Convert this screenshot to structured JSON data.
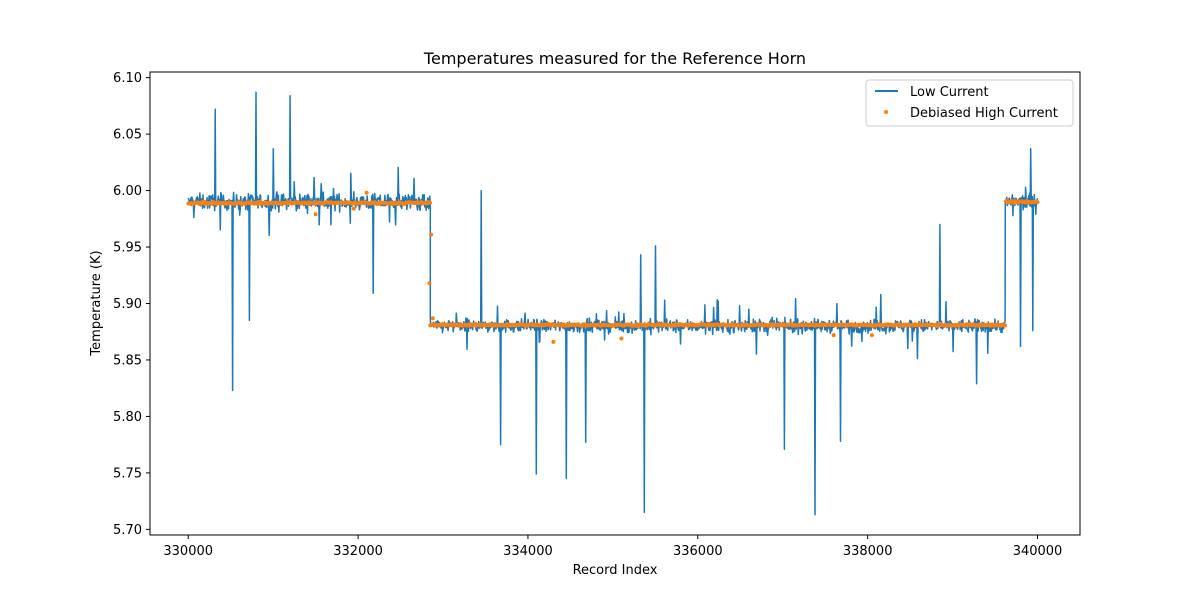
{
  "chart_data": {
    "type": "line",
    "title": "Temperatures measured for the Reference Horn",
    "xlabel": "Record Index",
    "ylabel": "Temperature (K)",
    "xlim": [
      329550,
      340500
    ],
    "ylim": [
      5.695,
      6.105
    ],
    "xticks": [
      330000,
      332000,
      334000,
      336000,
      338000,
      340000
    ],
    "xtick_labels": [
      "330000",
      "332000",
      "334000",
      "336000",
      "338000",
      "340000"
    ],
    "yticks": [
      5.7,
      5.75,
      5.8,
      5.85,
      5.9,
      5.95,
      6.0,
      6.05,
      6.1
    ],
    "ytick_labels": [
      "5.70",
      "5.75",
      "5.80",
      "5.85",
      "5.90",
      "5.95",
      "6.00",
      "6.05",
      "6.10"
    ],
    "grid": false,
    "legend_position": "top-right",
    "series": [
      {
        "name": "Low Current",
        "style": "line",
        "color": "#1f77b4",
        "segments": [
          {
            "x_start": 330000,
            "x_end": 332850,
            "base": 5.99,
            "noise": 0.012
          },
          {
            "x_start": 332850,
            "x_end": 339620,
            "base": 5.88,
            "noise": 0.01
          },
          {
            "x_start": 339620,
            "x_end": 340000,
            "base": 5.99,
            "noise": 0.012
          }
        ],
        "spikes": [
          {
            "x": 330320,
            "y": 6.072
          },
          {
            "x": 330520,
            "y": 5.823
          },
          {
            "x": 330720,
            "y": 5.885
          },
          {
            "x": 330800,
            "y": 6.087
          },
          {
            "x": 331000,
            "y": 6.037
          },
          {
            "x": 331200,
            "y": 6.084
          },
          {
            "x": 332180,
            "y": 5.909
          },
          {
            "x": 333450,
            "y": 6.0
          },
          {
            "x": 333680,
            "y": 5.775
          },
          {
            "x": 334100,
            "y": 5.749
          },
          {
            "x": 334450,
            "y": 5.745
          },
          {
            "x": 334680,
            "y": 5.777
          },
          {
            "x": 335330,
            "y": 5.943
          },
          {
            "x": 335370,
            "y": 5.715
          },
          {
            "x": 335500,
            "y": 5.951
          },
          {
            "x": 337020,
            "y": 5.771
          },
          {
            "x": 337380,
            "y": 5.713
          },
          {
            "x": 337680,
            "y": 5.778
          },
          {
            "x": 338850,
            "y": 5.97
          },
          {
            "x": 339280,
            "y": 5.829
          },
          {
            "x": 339800,
            "y": 5.862
          },
          {
            "x": 339940,
            "y": 5.876
          },
          {
            "x": 339920,
            "y": 6.037
          }
        ]
      },
      {
        "name": "Debiased High Current",
        "style": "scatter",
        "color": "#ff7f0e",
        "segments": [
          {
            "x_start": 330000,
            "x_end": 332850,
            "base": 5.989,
            "noise": 0.0015
          },
          {
            "x_start": 332850,
            "x_end": 339620,
            "base": 5.881,
            "noise": 0.0012
          },
          {
            "x_start": 339620,
            "x_end": 340000,
            "base": 5.99,
            "noise": 0.0015
          }
        ],
        "outliers": [
          {
            "x": 332100,
            "y": 5.998
          },
          {
            "x": 331500,
            "y": 5.979
          },
          {
            "x": 331950,
            "y": 5.984
          },
          {
            "x": 332860,
            "y": 5.961
          },
          {
            "x": 332840,
            "y": 5.918
          },
          {
            "x": 334300,
            "y": 5.866
          },
          {
            "x": 335100,
            "y": 5.869
          },
          {
            "x": 337600,
            "y": 5.872
          },
          {
            "x": 338050,
            "y": 5.872
          },
          {
            "x": 332880,
            "y": 5.887
          }
        ]
      }
    ]
  }
}
